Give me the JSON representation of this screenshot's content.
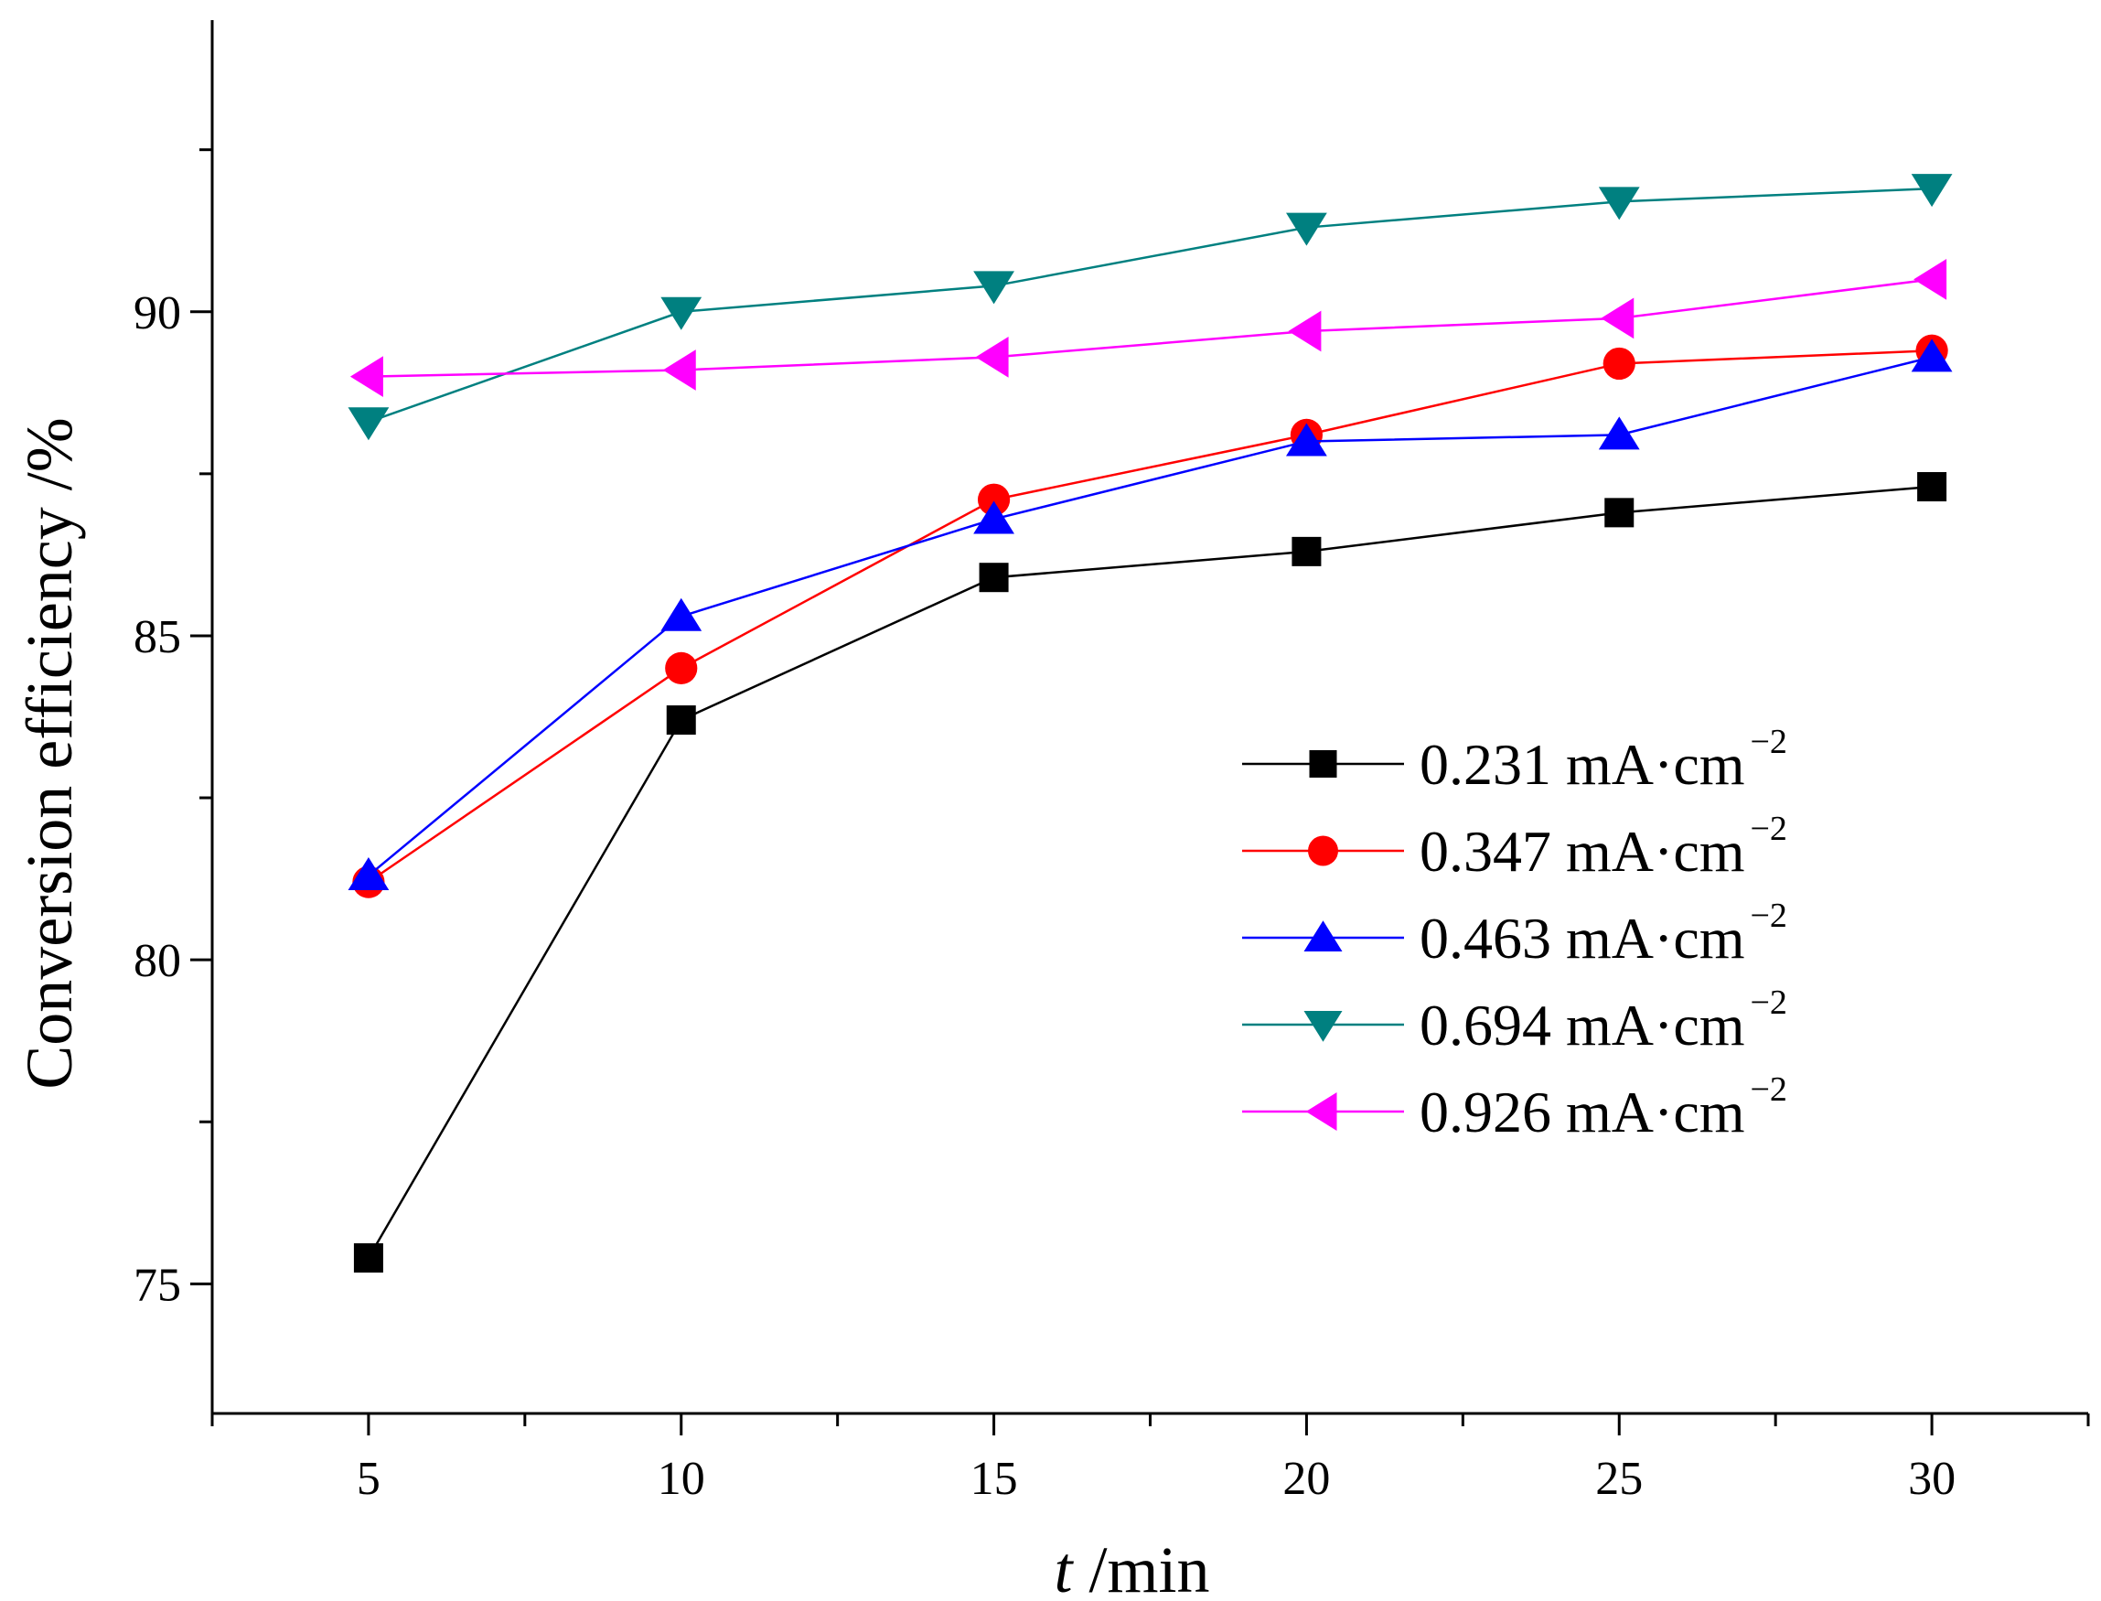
{
  "chart_data": {
    "type": "line",
    "title": "",
    "xlabel": "/min",
    "xlabel_italic": "t",
    "ylabel": "Conversion efficiency /%",
    "xlim": [
      2.5,
      32.5
    ],
    "ylim": [
      73,
      94.5
    ],
    "x_ticks": [
      5,
      10,
      15,
      20,
      25,
      30
    ],
    "x_tick_labels": [
      "5",
      "10",
      "15",
      "20",
      "25",
      "30"
    ],
    "y_ticks": [
      75,
      80,
      85,
      90
    ],
    "y_tick_labels": [
      "75",
      "80",
      "85",
      "90"
    ],
    "grid": false,
    "legend_position": "lower-right",
    "x": [
      5,
      10,
      15,
      20,
      25,
      30
    ],
    "series": [
      {
        "name": "0.231 mA·cm",
        "unit_exp": "−2",
        "color": "#000000",
        "marker": "square",
        "values": [
          75.4,
          83.7,
          85.9,
          86.3,
          86.9,
          87.3
        ]
      },
      {
        "name": "0.347 mA·cm",
        "unit_exp": "−2",
        "color": "#ff0000",
        "marker": "circle",
        "values": [
          81.2,
          84.5,
          87.1,
          88.1,
          89.2,
          89.4
        ]
      },
      {
        "name": "0.463 mA·cm",
        "unit_exp": "−2",
        "color": "#0000ff",
        "marker": "triangle-up",
        "values": [
          81.3,
          85.3,
          86.8,
          88.0,
          88.1,
          89.3
        ]
      },
      {
        "name": "0.694 mA·cm",
        "unit_exp": "−2",
        "color": "#008080",
        "marker": "triangle-down",
        "values": [
          88.3,
          90.0,
          90.4,
          91.3,
          91.7,
          91.9
        ]
      },
      {
        "name": "0.926 mA·cm",
        "unit_exp": "−2",
        "color": "#ff00ff",
        "marker": "triangle-left",
        "values": [
          89.0,
          89.1,
          89.3,
          89.7,
          89.9,
          90.5
        ]
      }
    ]
  }
}
